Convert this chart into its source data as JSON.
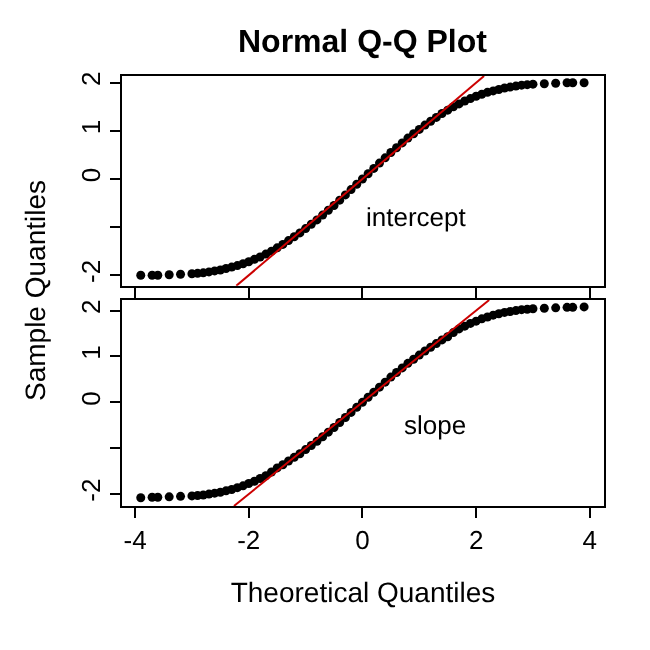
{
  "chart_data": [
    {
      "type": "scatter",
      "title": "Normal Q-Q Plot",
      "ylabel": "Sample Quantiles",
      "annotations": [
        "intercept"
      ],
      "xlim": [
        -4.23,
        4.25
      ],
      "ylim": [
        -2.22,
        2.14
      ],
      "xticks": [
        -4,
        -2,
        0,
        2,
        4
      ],
      "yticks": [
        -2,
        {
          "value": -1,
          "label": null
        },
        0,
        1,
        2
      ],
      "tick_labels": "y",
      "marker": "circle",
      "series": [
        {
          "color": "#000000",
          "x": [
            -3.9,
            -3.7,
            -3.6,
            -3.4,
            -3.2,
            -3.0,
            -2.9,
            -2.8,
            -2.7,
            -2.6,
            -2.5,
            -2.4,
            -2.3,
            -2.2,
            -2.1,
            -2.0,
            -1.9,
            -1.8,
            -1.7,
            -1.6,
            -1.5,
            -1.4,
            -1.3,
            -1.2,
            -1.1,
            -1.0,
            -0.9,
            -0.8,
            -0.7,
            -0.6,
            -0.5,
            -0.4,
            -0.3,
            -0.2,
            -0.1,
            0,
            0.1,
            0.2,
            0.3,
            0.4,
            0.5,
            0.6,
            0.7,
            0.8,
            0.9,
            1.0,
            1.1,
            1.2,
            1.3,
            1.4,
            1.5,
            1.6,
            1.7,
            1.8,
            1.9,
            2.0,
            2.1,
            2.2,
            2.3,
            2.4,
            2.5,
            2.6,
            2.7,
            2.8,
            2.9,
            3.0,
            3.2,
            3.4,
            3.6,
            3.7,
            3.9
          ],
          "values": [
            -2.0,
            -2.0,
            -2.0,
            -1.99,
            -1.98,
            -1.97,
            -1.96,
            -1.95,
            -1.93,
            -1.91,
            -1.89,
            -1.86,
            -1.83,
            -1.8,
            -1.76,
            -1.72,
            -1.67,
            -1.62,
            -1.56,
            -1.5,
            -1.43,
            -1.36,
            -1.28,
            -1.2,
            -1.12,
            -1.03,
            -0.94,
            -0.85,
            -0.75,
            -0.65,
            -0.55,
            -0.44,
            -0.33,
            -0.22,
            -0.11,
            0,
            0.11,
            0.22,
            0.33,
            0.44,
            0.55,
            0.65,
            0.75,
            0.85,
            0.94,
            1.03,
            1.12,
            1.2,
            1.28,
            1.36,
            1.43,
            1.5,
            1.56,
            1.62,
            1.67,
            1.72,
            1.76,
            1.8,
            1.83,
            1.86,
            1.89,
            1.91,
            1.93,
            1.95,
            1.96,
            1.97,
            1.98,
            1.99,
            2.0,
            2.0,
            2.0
          ]
        },
        {
          "type": "line",
          "color": "#cc0000",
          "marker": "none",
          "x": [
            -2.22,
            2.14
          ],
          "values": [
            -2.22,
            2.14
          ]
        }
      ]
    },
    {
      "type": "scatter",
      "xlabel": "Theoretical Quantiles",
      "annotations": [
        "slope"
      ],
      "xlim": [
        -4.23,
        4.25
      ],
      "ylim": [
        -2.26,
        2.23
      ],
      "xticks": [
        -4,
        -2,
        0,
        2,
        4
      ],
      "yticks": [
        -2,
        {
          "value": -1,
          "label": null
        },
        0,
        1,
        2
      ],
      "marker": "circle",
      "series": [
        {
          "color": "#000000",
          "x": [
            -3.9,
            -3.7,
            -3.6,
            -3.4,
            -3.2,
            -3.0,
            -2.9,
            -2.8,
            -2.7,
            -2.6,
            -2.5,
            -2.4,
            -2.3,
            -2.2,
            -2.1,
            -2.0,
            -1.9,
            -1.8,
            -1.7,
            -1.6,
            -1.5,
            -1.4,
            -1.3,
            -1.2,
            -1.1,
            -1.0,
            -0.9,
            -0.8,
            -0.7,
            -0.6,
            -0.5,
            -0.4,
            -0.3,
            -0.2,
            -0.1,
            0,
            0.1,
            0.2,
            0.3,
            0.4,
            0.5,
            0.6,
            0.7,
            0.8,
            0.9,
            1.0,
            1.1,
            1.2,
            1.3,
            1.4,
            1.5,
            1.6,
            1.7,
            1.8,
            1.9,
            2.0,
            2.1,
            2.2,
            2.3,
            2.4,
            2.5,
            2.6,
            2.7,
            2.8,
            2.9,
            3.0,
            3.2,
            3.4,
            3.6,
            3.7,
            3.9
          ],
          "values": [
            -2.08,
            -2.07,
            -2.07,
            -2.06,
            -2.05,
            -2.04,
            -2.03,
            -2.02,
            -2.0,
            -1.98,
            -1.96,
            -1.93,
            -1.9,
            -1.86,
            -1.82,
            -1.77,
            -1.72,
            -1.66,
            -1.6,
            -1.52,
            -1.43,
            -1.36,
            -1.28,
            -1.2,
            -1.12,
            -1.03,
            -0.94,
            -0.85,
            -0.75,
            -0.65,
            -0.55,
            -0.44,
            -0.33,
            -0.22,
            -0.11,
            0,
            0.11,
            0.22,
            0.33,
            0.44,
            0.55,
            0.65,
            0.75,
            0.85,
            0.94,
            1.03,
            1.12,
            1.2,
            1.28,
            1.36,
            1.43,
            1.52,
            1.6,
            1.66,
            1.72,
            1.77,
            1.82,
            1.86,
            1.9,
            1.93,
            1.96,
            1.98,
            2.0,
            2.02,
            2.03,
            2.04,
            2.05,
            2.06,
            2.07,
            2.07,
            2.08
          ]
        },
        {
          "type": "line",
          "color": "#cc0000",
          "marker": "none",
          "x": [
            -2.26,
            2.23
          ],
          "values": [
            -2.26,
            2.23
          ]
        }
      ]
    }
  ]
}
